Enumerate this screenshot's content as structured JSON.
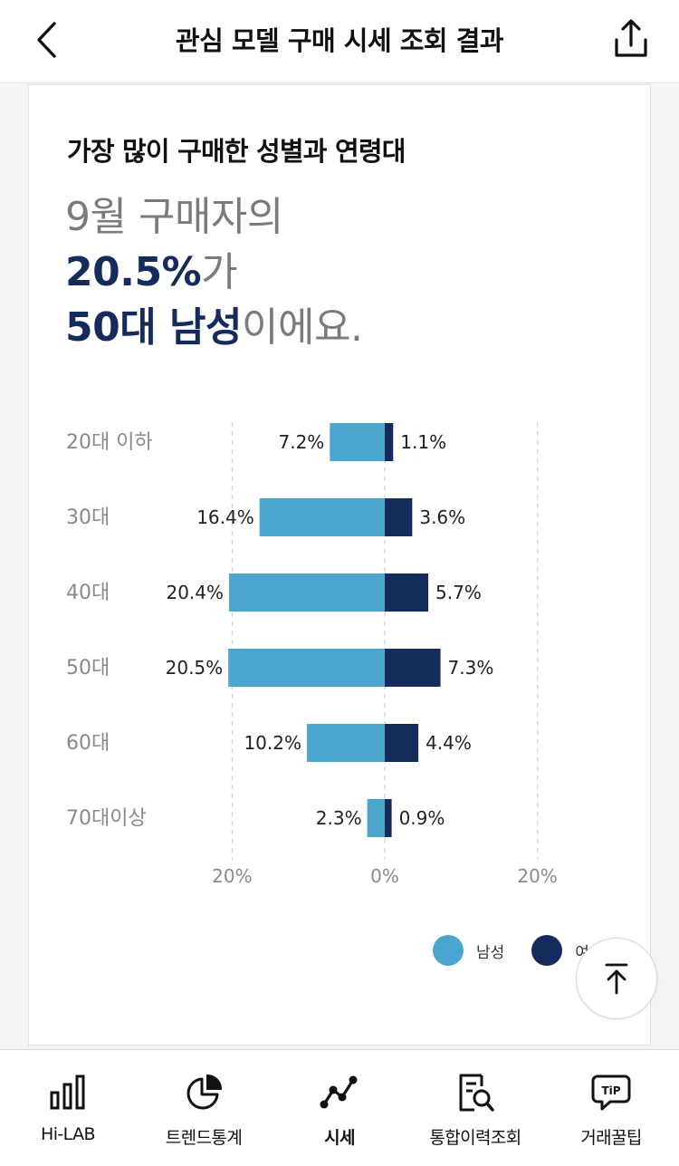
{
  "header": {
    "title": "관심 모델 구매 시세 조회 결과",
    "back_icon": "chevron-left-icon",
    "share_icon": "share-icon"
  },
  "card": {
    "heading": "가장 많이 구매한 성별과 연령대",
    "summary": {
      "line1": "9월 구매자의",
      "percent": "20.5%",
      "line2_suffix": "가",
      "group": "50대 남성",
      "line3_suffix": "이에요."
    }
  },
  "chart_data": {
    "type": "bar",
    "orientation": "horizontal-diverging",
    "categories": [
      "20대 이하",
      "30대",
      "40대",
      "50대",
      "60대",
      "70대이상"
    ],
    "series": [
      {
        "name": "남성",
        "color": "#4aa6cf",
        "values": [
          7.2,
          16.4,
          20.4,
          20.5,
          10.2,
          2.3
        ]
      },
      {
        "name": "여성",
        "color": "#142b5c",
        "values": [
          1.1,
          3.6,
          5.7,
          7.3,
          4.4,
          0.9
        ]
      }
    ],
    "value_labels": {
      "left": [
        "7.2%",
        "16.4%",
        "20.4%",
        "20.5%",
        "10.2%",
        "2.3%"
      ],
      "right": [
        "1.1%",
        "3.6%",
        "5.7%",
        "7.3%",
        "4.4%",
        "0.9%"
      ]
    },
    "x_ticks": [
      "20%",
      "0%",
      "20%"
    ],
    "xlim": [
      -20,
      20
    ],
    "grid": "vertical dashed",
    "legend_position": "bottom-right"
  },
  "legend": {
    "male_label": "남성",
    "female_label": "여성"
  },
  "scroll_top_icon": "arrow-up-to-top-icon",
  "tabs": [
    {
      "label": "Hi-LAB",
      "icon": "bar-chart-icon",
      "active": false
    },
    {
      "label": "트렌드통계",
      "icon": "pie-chart-icon",
      "active": false
    },
    {
      "label": "시세",
      "icon": "line-chart-icon",
      "active": true
    },
    {
      "label": "통합이력조회",
      "icon": "document-search-icon",
      "active": false
    },
    {
      "label": "거래꿀팁",
      "icon": "tip-bubble-icon",
      "active": false
    }
  ]
}
